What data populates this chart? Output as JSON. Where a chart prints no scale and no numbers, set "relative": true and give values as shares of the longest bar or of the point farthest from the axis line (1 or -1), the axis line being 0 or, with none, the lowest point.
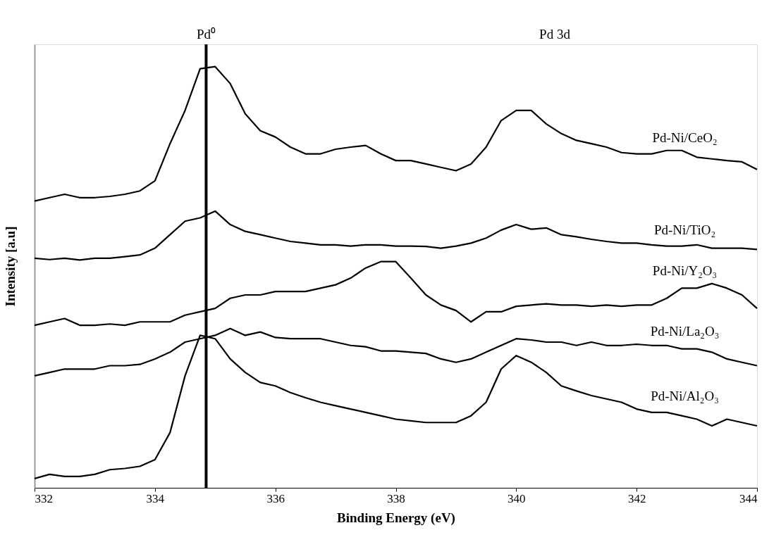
{
  "chart_data": {
    "type": "line",
    "relative": true,
    "xlabel": "Binding Energy (eV)",
    "ylabel": "Intensity [a.u]",
    "x": [
      332.0,
      332.25,
      332.5,
      332.75,
      333.0,
      333.25,
      333.5,
      333.75,
      334.0,
      334.25,
      334.5,
      334.75,
      335.0,
      335.25,
      335.5,
      335.75,
      336.0,
      336.25,
      336.5,
      336.75,
      337.0,
      337.25,
      337.5,
      337.75,
      338.0,
      338.25,
      338.5,
      338.75,
      339.0,
      339.25,
      339.5,
      339.75,
      340.0,
      340.25,
      340.5,
      340.75,
      341.0,
      341.25,
      341.5,
      341.75,
      342.0,
      342.25,
      342.5,
      342.75,
      343.0,
      343.25,
      343.5,
      343.75,
      344.0
    ],
    "xlim": [
      332,
      344
    ],
    "xticks": [
      332,
      334,
      336,
      338,
      340,
      342,
      344
    ],
    "grid": false,
    "marker": "none",
    "line_style": "solid",
    "series": [
      {
        "name": "Pd-Ni/CeO₂",
        "color": "#000000",
        "values": [
          0.681,
          0.689,
          0.697,
          0.689,
          0.689,
          0.692,
          0.697,
          0.705,
          0.729,
          0.817,
          0.896,
          0.995,
          1.0,
          0.96,
          0.888,
          0.848,
          0.833,
          0.809,
          0.793,
          0.793,
          0.804,
          0.809,
          0.813,
          0.793,
          0.777,
          0.777,
          0.769,
          0.761,
          0.753,
          0.769,
          0.809,
          0.872,
          0.896,
          0.896,
          0.864,
          0.841,
          0.825,
          0.817,
          0.809,
          0.796,
          0.793,
          0.793,
          0.801,
          0.801,
          0.785,
          0.781,
          0.777,
          0.774,
          0.756
        ]
      },
      {
        "name": "Pd-Ni/TiO₂",
        "color": "#000000",
        "values": [
          0.545,
          0.542,
          0.545,
          0.541,
          0.545,
          0.545,
          0.549,
          0.553,
          0.569,
          0.601,
          0.633,
          0.641,
          0.657,
          0.625,
          0.609,
          0.601,
          0.593,
          0.585,
          0.581,
          0.577,
          0.577,
          0.574,
          0.577,
          0.577,
          0.574,
          0.574,
          0.573,
          0.569,
          0.574,
          0.581,
          0.593,
          0.612,
          0.625,
          0.614,
          0.617,
          0.601,
          0.596,
          0.59,
          0.585,
          0.581,
          0.581,
          0.577,
          0.574,
          0.574,
          0.577,
          0.569,
          0.569,
          0.569,
          0.566
        ]
      },
      {
        "name": "Pd-Ni/Y₂O₃",
        "color": "#000000",
        "values": [
          0.386,
          0.394,
          0.402,
          0.386,
          0.386,
          0.389,
          0.386,
          0.394,
          0.394,
          0.394,
          0.41,
          0.418,
          0.426,
          0.45,
          0.458,
          0.458,
          0.466,
          0.466,
          0.466,
          0.474,
          0.482,
          0.498,
          0.522,
          0.537,
          0.537,
          0.498,
          0.458,
          0.434,
          0.421,
          0.394,
          0.418,
          0.418,
          0.431,
          0.434,
          0.437,
          0.434,
          0.434,
          0.431,
          0.434,
          0.431,
          0.434,
          0.434,
          0.45,
          0.474,
          0.474,
          0.485,
          0.474,
          0.458,
          0.426
        ]
      },
      {
        "name": "Pd-Ni/La₂O₃",
        "color": "#000000",
        "values": [
          0.266,
          0.274,
          0.282,
          0.282,
          0.282,
          0.29,
          0.29,
          0.293,
          0.306,
          0.322,
          0.346,
          0.354,
          0.362,
          0.378,
          0.362,
          0.37,
          0.357,
          0.354,
          0.354,
          0.354,
          0.346,
          0.338,
          0.335,
          0.325,
          0.325,
          0.322,
          0.319,
          0.306,
          0.298,
          0.306,
          0.322,
          0.338,
          0.354,
          0.351,
          0.346,
          0.346,
          0.338,
          0.346,
          0.338,
          0.338,
          0.341,
          0.338,
          0.338,
          0.33,
          0.33,
          0.322,
          0.306,
          0.298,
          0.29
        ]
      },
      {
        "name": "Pd-Ni/Al₂O₃",
        "color": "#000000",
        "values": [
          0.022,
          0.032,
          0.027,
          0.027,
          0.032,
          0.043,
          0.046,
          0.051,
          0.067,
          0.131,
          0.266,
          0.362,
          0.354,
          0.306,
          0.274,
          0.25,
          0.242,
          0.226,
          0.214,
          0.203,
          0.195,
          0.187,
          0.179,
          0.171,
          0.163,
          0.159,
          0.155,
          0.155,
          0.155,
          0.171,
          0.203,
          0.282,
          0.314,
          0.298,
          0.274,
          0.242,
          0.23,
          0.219,
          0.211,
          0.203,
          0.187,
          0.179,
          0.179,
          0.171,
          0.163,
          0.147,
          0.163,
          0.155,
          0.147
        ]
      }
    ],
    "ref_lines": [
      {
        "axis": "x",
        "value": 334.85,
        "label": "Pd⁰",
        "color": "#000000"
      }
    ],
    "annotations": [
      "Pd 3d"
    ]
  }
}
